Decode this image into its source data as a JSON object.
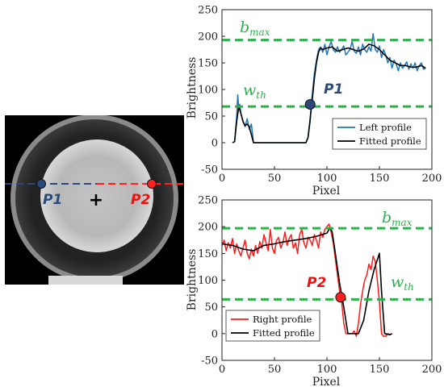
{
  "colors": {
    "green": "#2bb24c",
    "blue_profile": "#1f77b4",
    "red_profile": "#ff1a1a",
    "fitted": "#000000",
    "p1_dot": "#2b4a7a",
    "p2_dot": "#ff2020",
    "p1_text": "#2b4a7a",
    "p2_text": "#ee1111"
  },
  "image_panel": {
    "p1_label": "P1",
    "p2_label": "P2",
    "center_marker": "+"
  },
  "chart_data": [
    {
      "type": "line",
      "xlabel": "Pixel",
      "ylabel": "Brightness",
      "xlim": [
        0,
        200
      ],
      "ylim": [
        -50,
        250
      ],
      "xticks": [
        0,
        50,
        100,
        150,
        200
      ],
      "yticks": [
        -50,
        0,
        50,
        100,
        150,
        200,
        250
      ],
      "legend_position": "bottom-right",
      "series": [
        {
          "name": "Left profile",
          "color_key": "blue_profile",
          "x": [
            10,
            12,
            14,
            15,
            16,
            17,
            18,
            20,
            22,
            24,
            26,
            28,
            30,
            35,
            50,
            70,
            80,
            82,
            84,
            85,
            86,
            88,
            90,
            92,
            94,
            96,
            98,
            100,
            102,
            104,
            106,
            108,
            110,
            112,
            114,
            116,
            118,
            120,
            122,
            124,
            126,
            128,
            130,
            132,
            134,
            136,
            138,
            140,
            142,
            144,
            146,
            148,
            150,
            152,
            154,
            156,
            158,
            160,
            162,
            164,
            166,
            168,
            170,
            172,
            174,
            176,
            178,
            180,
            182,
            184,
            186,
            188,
            190,
            192,
            194
          ],
          "y": [
            0,
            2,
            50,
            90,
            65,
            72,
            55,
            40,
            30,
            45,
            25,
            35,
            0,
            0,
            0,
            0,
            0,
            10,
            40,
            72,
            90,
            130,
            155,
            175,
            180,
            170,
            185,
            165,
            180,
            190,
            175,
            170,
            180,
            170,
            175,
            182,
            165,
            170,
            175,
            190,
            172,
            168,
            180,
            165,
            185,
            175,
            170,
            180,
            172,
            205,
            175,
            170,
            182,
            160,
            175,
            165,
            150,
            160,
            140,
            155,
            148,
            135,
            150,
            140,
            145,
            152,
            138,
            148,
            140,
            150,
            135,
            145,
            150,
            138,
            140
          ]
        },
        {
          "name": "Fitted profile",
          "color_key": "fitted",
          "x": [
            10,
            12,
            14,
            16,
            18,
            20,
            22,
            24,
            26,
            28,
            30,
            35,
            50,
            70,
            80,
            82,
            84,
            86,
            88,
            90,
            92,
            94,
            96,
            100,
            105,
            110,
            115,
            120,
            125,
            130,
            135,
            140,
            145,
            150,
            155,
            160,
            165,
            170,
            175,
            180,
            185,
            190,
            194
          ],
          "y": [
            0,
            2,
            40,
            68,
            55,
            40,
            32,
            35,
            30,
            15,
            0,
            0,
            0,
            0,
            0,
            10,
            45,
            80,
            120,
            150,
            170,
            178,
            175,
            178,
            180,
            172,
            175,
            178,
            175,
            172,
            176,
            185,
            182,
            175,
            165,
            155,
            150,
            145,
            145,
            142,
            142,
            145,
            140
          ]
        }
      ],
      "annotations": [
        {
          "text": "b",
          "sub": "max",
          "y_value": 193
        },
        {
          "text": "w",
          "sub": "th",
          "y_value": 68
        },
        {
          "point_label": "P1",
          "x_value": 84,
          "y_value": 72
        }
      ]
    },
    {
      "type": "line",
      "xlabel": "Pixel",
      "ylabel": "Brightness",
      "xlim": [
        0,
        200
      ],
      "ylim": [
        -50,
        250
      ],
      "xticks": [
        0,
        50,
        100,
        150,
        200
      ],
      "yticks": [
        -50,
        0,
        50,
        100,
        150,
        200,
        250
      ],
      "legend_position": "bottom-left",
      "series": [
        {
          "name": "Right profile",
          "color_key": "red_profile",
          "x": [
            0,
            2,
            4,
            6,
            8,
            10,
            12,
            14,
            16,
            18,
            20,
            22,
            24,
            26,
            28,
            30,
            32,
            34,
            36,
            38,
            40,
            42,
            44,
            46,
            48,
            50,
            52,
            54,
            56,
            58,
            60,
            62,
            64,
            66,
            68,
            70,
            72,
            74,
            76,
            78,
            80,
            82,
            84,
            86,
            88,
            90,
            92,
            94,
            96,
            98,
            100,
            102,
            104,
            106,
            108,
            110,
            112,
            114,
            116,
            118,
            120,
            122,
            124,
            126,
            128,
            130,
            132,
            134,
            136,
            138,
            140,
            142,
            144,
            146,
            148,
            150,
            152,
            154,
            156,
            158,
            160,
            162
          ],
          "y": [
            165,
            175,
            155,
            170,
            160,
            178,
            150,
            168,
            155,
            145,
            160,
            175,
            150,
            140,
            158,
            145,
            165,
            150,
            172,
            160,
            185,
            170,
            155,
            195,
            160,
            150,
            175,
            180,
            160,
            170,
            190,
            165,
            178,
            185,
            160,
            170,
            150,
            185,
            195,
            170,
            160,
            180,
            175,
            165,
            185,
            175,
            160,
            190,
            180,
            195,
            200,
            205,
            190,
            170,
            140,
            110,
            80,
            60,
            20,
            0,
            0,
            0,
            0,
            5,
            -5,
            20,
            55,
            80,
            100,
            110,
            130,
            120,
            145,
            135,
            100,
            60,
            0,
            -5,
            -5,
            0,
            -2,
            0
          ]
        },
        {
          "name": "Fitted profile",
          "color_key": "fitted",
          "x": [
            0,
            10,
            20,
            30,
            40,
            50,
            60,
            70,
            80,
            90,
            100,
            103,
            105,
            108,
            112,
            116,
            120,
            125,
            130,
            135,
            140,
            145,
            150,
            152,
            155,
            160,
            162
          ],
          "y": [
            168,
            165,
            158,
            155,
            165,
            168,
            172,
            175,
            178,
            182,
            188,
            198,
            190,
            150,
            95,
            50,
            0,
            0,
            0,
            25,
            80,
            120,
            150,
            80,
            0,
            -2,
            0
          ]
        }
      ],
      "annotations": [
        {
          "text": "b",
          "sub": "max",
          "y_value": 197
        },
        {
          "text": "w",
          "sub": "th",
          "y_value": 64
        },
        {
          "point_label": "P2",
          "x_value": 113,
          "y_value": 68
        }
      ]
    }
  ]
}
